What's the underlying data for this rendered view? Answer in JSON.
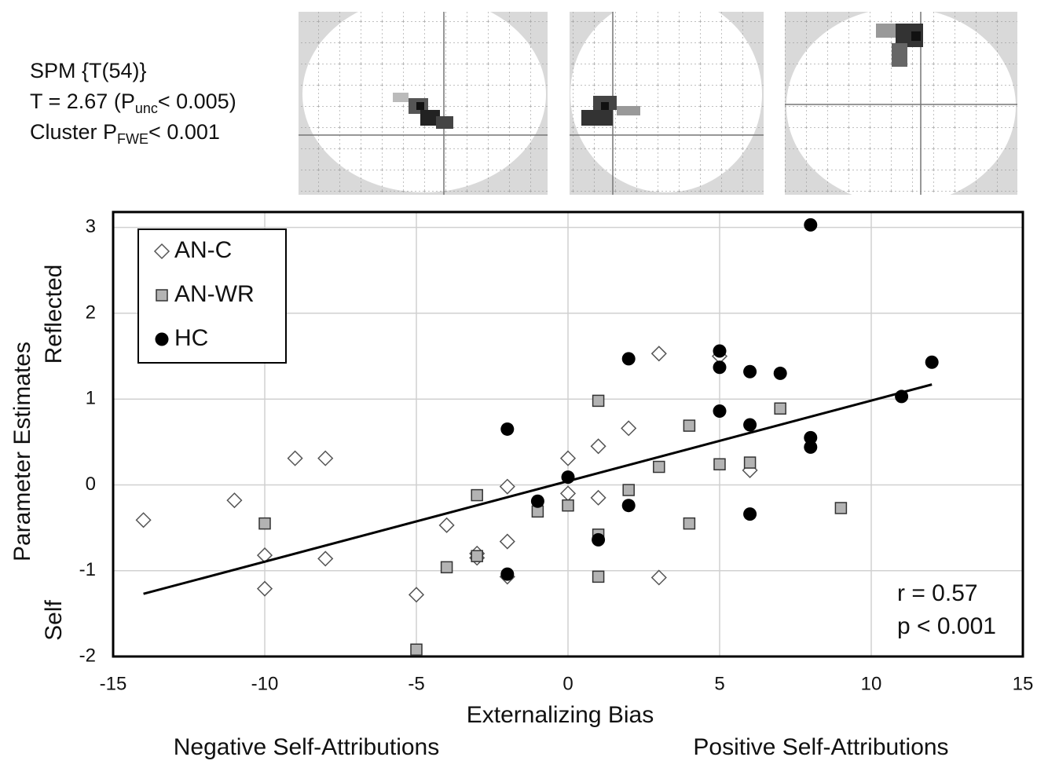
{
  "header": {
    "line1": "SPM {T(54)}",
    "line2": {
      "main": "T = 2.67 (P",
      "sub": "unc",
      "after": "< 0.005)"
    },
    "line3": {
      "main": "Cluster P",
      "sub": "FWE",
      "after": "< 0.001"
    }
  },
  "chart_data": {
    "type": "scatter",
    "xlabel": "Externalizing  Bias",
    "xlabel_left": "Negative  Self-Attributions",
    "xlabel_right": "Positive  Self-Attributions",
    "ylabel": "Parameter Estimates",
    "ylabel_low": "Self",
    "ylabel_high": "Reflected",
    "xlim": [
      -15,
      15
    ],
    "xticks": [
      -15,
      -10,
      -5,
      0,
      5,
      10,
      15
    ],
    "ylim": [
      -2,
      3.18
    ],
    "yticks": [
      -2,
      -1,
      0,
      1,
      2,
      3
    ],
    "grid": true,
    "legend": "upper left",
    "series": [
      {
        "name": "AN-C",
        "marker": "diamond",
        "color": "#ffffff",
        "x": [
          -14,
          -11,
          -10,
          -10,
          -9,
          -8,
          -8,
          -5,
          -4,
          -3,
          -3,
          -2,
          -2,
          -2,
          0,
          0,
          1,
          1,
          2,
          3,
          3,
          5,
          6
        ],
        "values": [
          -0.41,
          -0.18,
          -0.82,
          -1.21,
          0.31,
          0.31,
          -0.86,
          -1.28,
          -0.47,
          -0.8,
          -0.85,
          -0.02,
          -0.66,
          -1.07,
          0.31,
          -0.1,
          0.45,
          -0.15,
          0.66,
          1.53,
          -1.08,
          1.5,
          0.17
        ]
      },
      {
        "name": "AN-WR",
        "marker": "square",
        "color": "#b3b3b3",
        "x": [
          -10,
          -5,
          -4,
          -3,
          -3,
          -1,
          0,
          1,
          1,
          1,
          2,
          3,
          4,
          4,
          5,
          6,
          7,
          9
        ],
        "values": [
          -0.45,
          -1.92,
          -0.96,
          -0.12,
          -0.83,
          -0.31,
          -0.24,
          0.98,
          -0.58,
          -1.07,
          -0.06,
          0.21,
          0.69,
          -0.45,
          0.24,
          0.26,
          0.89,
          -0.27
        ]
      },
      {
        "name": "HC",
        "marker": "circle",
        "color": "#000000",
        "x": [
          -2,
          -2,
          -1,
          0,
          1,
          2,
          2,
          5,
          5,
          5,
          6,
          6,
          6,
          7,
          8,
          8,
          8,
          11,
          12
        ],
        "values": [
          0.65,
          -1.04,
          -0.19,
          0.09,
          -0.64,
          1.47,
          -0.24,
          1.56,
          1.37,
          0.86,
          1.32,
          0.7,
          -0.34,
          1.3,
          3.03,
          0.55,
          0.44,
          1.03,
          1.43
        ]
      }
    ],
    "trend_line": {
      "x": [
        -14,
        12
      ],
      "values": [
        -1.27,
        1.17
      ]
    },
    "annotations": [
      "r = 0.57",
      "p < 0.001"
    ]
  }
}
